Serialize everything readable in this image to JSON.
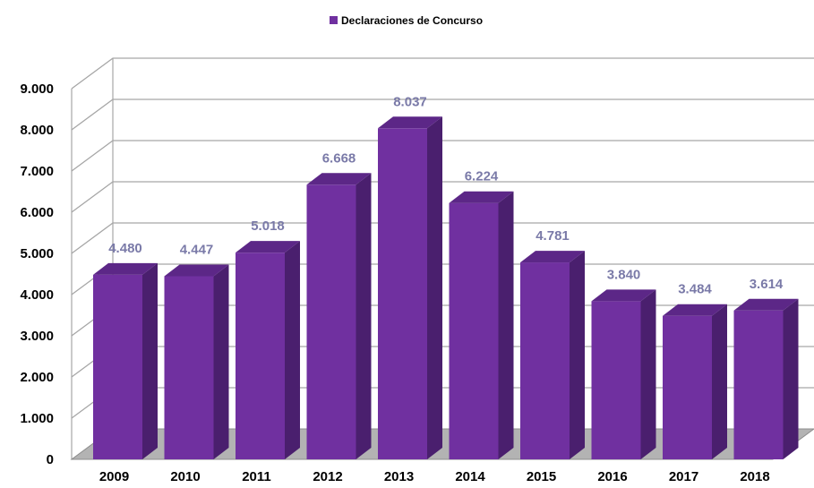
{
  "chart_data": {
    "type": "bar",
    "categories": [
      "2009",
      "2010",
      "2011",
      "2012",
      "2013",
      "2014",
      "2015",
      "2016",
      "2017",
      "2018"
    ],
    "series": [
      {
        "name": "Declaraciones de Concurso",
        "values": [
          4480,
          4447,
          5018,
          6668,
          8037,
          6224,
          4781,
          3840,
          3484,
          3614
        ]
      }
    ],
    "data_labels": [
      "4.480",
      "4.447",
      "5.018",
      "6.668",
      "8.037",
      "6.224",
      "4.781",
      "3.840",
      "3.484",
      "3.614"
    ],
    "y_ticks": [
      0,
      1000,
      2000,
      3000,
      4000,
      5000,
      6000,
      7000,
      8000,
      9000
    ],
    "y_tick_labels": [
      "0",
      "1.000",
      "2.000",
      "3.000",
      "4.000",
      "5.000",
      "6.000",
      "7.000",
      "8.000",
      "9.000"
    ],
    "ylim": [
      0,
      9000
    ],
    "grid": true,
    "three_d": true,
    "legend_position": "top",
    "colors": {
      "bar_front": "#7030a0",
      "bar_side": "#4a1f6e",
      "bar_top": "#5c2787",
      "floor": "#b3b3b3",
      "grid": "#a6a6a6",
      "data_label": "#7a7aa8"
    }
  }
}
